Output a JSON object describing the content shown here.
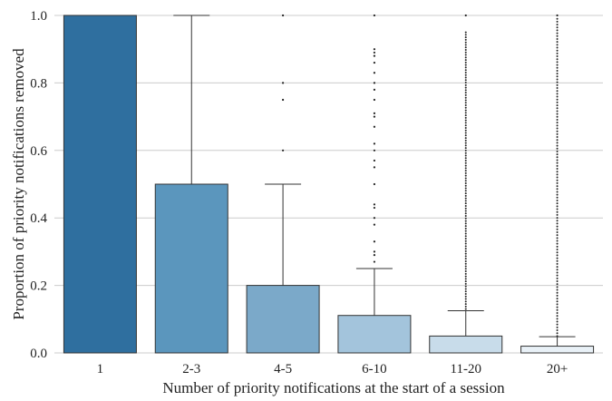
{
  "chart_data": {
    "type": "box",
    "title": "",
    "xlabel": "Number of priority notifications at the start of a session",
    "ylabel": "Proportion of priority notifications removed",
    "ylim": [
      0,
      1
    ],
    "yticks": [
      0.0,
      0.2,
      0.4,
      0.6,
      0.8,
      1.0
    ],
    "ytick_labels": [
      "0.0",
      "0.2",
      "0.4",
      "0.6",
      "0.8",
      "1.0"
    ],
    "grid": "horizontal",
    "categories": [
      "1",
      "2-3",
      "4-5",
      "6-10",
      "11-20",
      "20+"
    ],
    "boxes": [
      {
        "category": "1",
        "q1": 0.0,
        "median": 1.0,
        "q3": 1.0,
        "whisker_low": 0.0,
        "whisker_high": 1.0,
        "color": "#2f6f9f",
        "outliers": []
      },
      {
        "category": "2-3",
        "q1": 0.0,
        "median": 0.0,
        "q3": 0.5,
        "whisker_low": 0.0,
        "whisker_high": 1.0,
        "color": "#5b96bd",
        "outliers": []
      },
      {
        "category": "4-5",
        "q1": 0.0,
        "median": 0.0,
        "q3": 0.2,
        "whisker_low": 0.0,
        "whisker_high": 0.5,
        "color": "#7ba9c9",
        "outliers": [
          0.6,
          0.75,
          0.8,
          1.0
        ]
      },
      {
        "category": "6-10",
        "q1": 0.0,
        "median": 0.0,
        "q3": 0.111,
        "whisker_low": 0.0,
        "whisker_high": 0.25,
        "color": "#a3c4dc",
        "outliers": [
          0.27,
          0.29,
          0.3,
          0.33,
          0.38,
          0.4,
          0.43,
          0.44,
          0.5,
          0.55,
          0.57,
          0.6,
          0.62,
          0.67,
          0.7,
          0.71,
          0.75,
          0.78,
          0.8,
          0.83,
          0.86,
          0.88,
          0.89,
          0.9,
          1.0
        ]
      },
      {
        "category": "11-20",
        "q1": 0.0,
        "median": 0.0,
        "q3": 0.05,
        "whisker_low": 0.0,
        "whisker_high": 0.125,
        "color": "#c8dcea",
        "outliers_dense_range": [
          0.13,
          0.95
        ],
        "outliers": [
          1.0
        ]
      },
      {
        "category": "20+",
        "q1": 0.0,
        "median": 0.0,
        "q3": 0.02,
        "whisker_low": 0.0,
        "whisker_high": 0.048,
        "color": "#e9f1f7",
        "outliers_dense_range": [
          0.05,
          0.99
        ],
        "outliers": [
          1.0
        ]
      }
    ]
  }
}
